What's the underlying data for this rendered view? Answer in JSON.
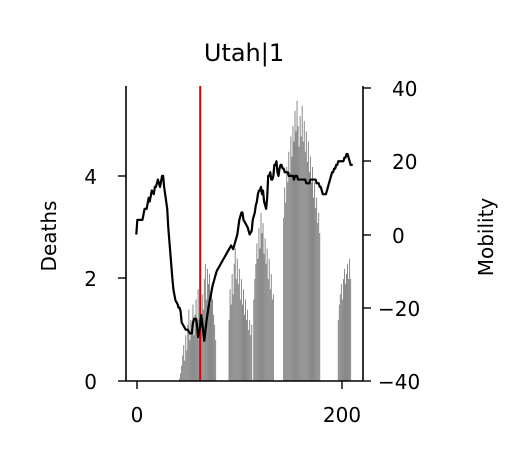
{
  "chart_data": {
    "type": "bar",
    "title": "Utah|1",
    "ylabel": "Deaths",
    "y2label": "Mobility",
    "x_ticks": [
      "0",
      "200"
    ],
    "y_ticks": [
      "0",
      "2",
      "4"
    ],
    "y2_ticks": [
      "40",
      "20",
      "0",
      "−20",
      "−40"
    ],
    "xlim": [
      -10,
      220
    ],
    "ylim": [
      0,
      5.75
    ],
    "y2lim": [
      -40,
      40
    ],
    "colors": {
      "bars": "#808080",
      "line": "#000000",
      "marker": "#dd0000"
    },
    "marker_x": 62,
    "grid": false,
    "bar_segments": [
      {
        "x_start": 42,
        "x_end": 62,
        "values": [
          0.05,
          0.15,
          0.3,
          0.5,
          0.7,
          0.4,
          0.9,
          0.6,
          1.1,
          1.4,
          0.8,
          1.2,
          1.0,
          1.5,
          0.9,
          1.3,
          1.6,
          1.1,
          1.8,
          1.2,
          1.4
        ]
      },
      {
        "x_start": 63,
        "x_end": 77,
        "values": [
          1.2,
          1.7,
          1.4,
          2.0,
          2.3,
          1.6,
          2.2,
          1.9,
          2.1,
          1.5,
          1.8,
          1.6,
          1.3,
          1.1,
          0.8
        ]
      },
      {
        "x_start": 90,
        "x_end": 112,
        "values": [
          1.2,
          1.8,
          1.5,
          2.1,
          1.7,
          2.3,
          2.6,
          2.0,
          2.4,
          1.9,
          2.2,
          1.6,
          2.0,
          1.5,
          1.8,
          1.3,
          1.6,
          1.2,
          1.4,
          1.0,
          1.2,
          0.9,
          1.1
        ]
      },
      {
        "x_start": 114,
        "x_end": 133,
        "values": [
          1.6,
          2.0,
          2.3,
          2.7,
          2.4,
          3.0,
          2.6,
          3.3,
          2.9,
          3.1,
          2.5,
          2.8,
          2.3,
          2.6,
          2.0,
          2.4,
          1.8,
          2.1,
          1.6,
          1.7
        ]
      },
      {
        "x_start": 143,
        "x_end": 178,
        "values": [
          3.2,
          3.8,
          3.5,
          4.2,
          3.9,
          4.5,
          4.1,
          4.8,
          4.4,
          5.0,
          4.7,
          5.3,
          4.9,
          5.5,
          5.0,
          4.6,
          5.2,
          4.8,
          5.4,
          4.7,
          5.1,
          4.5,
          4.9,
          4.3,
          4.7,
          4.1,
          4.4,
          3.9,
          4.2,
          3.6,
          3.9,
          3.4,
          3.6,
          3.1,
          3.3,
          2.9
        ]
      },
      {
        "x_start": 196,
        "x_end": 208,
        "values": [
          1.2,
          1.5,
          1.7,
          1.9,
          1.6,
          2.0,
          2.2,
          1.9,
          2.1,
          2.3,
          2.0,
          2.4,
          2.0
        ]
      }
    ],
    "mobility_series": {
      "x": [
        0,
        1,
        3,
        6,
        8,
        10,
        12,
        13,
        15,
        17,
        18,
        19,
        21,
        23,
        25,
        26,
        27,
        28,
        30,
        31,
        33,
        35,
        36,
        38,
        40,
        41,
        42,
        43,
        44,
        46,
        48,
        50,
        52,
        54,
        55,
        56,
        58,
        59,
        60,
        62,
        63,
        64,
        66,
        68,
        70,
        72,
        74,
        76,
        78,
        80,
        82,
        84,
        86,
        88,
        90,
        92,
        94,
        95,
        96,
        97,
        98,
        99,
        100,
        101,
        102,
        103,
        104,
        106,
        108,
        110,
        112,
        113,
        114,
        115,
        116,
        117,
        118,
        119,
        120,
        121,
        122,
        123,
        124,
        125,
        126,
        127,
        128,
        129,
        130,
        131,
        132,
        133,
        134,
        135,
        136,
        137,
        138,
        139,
        140,
        141,
        142,
        143,
        144,
        145,
        146,
        147,
        148,
        149,
        150,
        151,
        152,
        153,
        154,
        155,
        156,
        157,
        158,
        159,
        160,
        161,
        162,
        163,
        164,
        165,
        166,
        167,
        168,
        169,
        170,
        171,
        172,
        173,
        174,
        175,
        176,
        177,
        178,
        179,
        180,
        181,
        182,
        183,
        184,
        185,
        186,
        187,
        188,
        189,
        190,
        191,
        192,
        193,
        194,
        195,
        196,
        197,
        198,
        199,
        200,
        201,
        202,
        203,
        204,
        205,
        206,
        207,
        208,
        210
      ],
      "y": [
        0,
        4,
        4,
        4,
        7,
        7,
        10,
        9,
        12,
        11,
        13,
        13,
        15,
        13,
        16,
        16,
        13,
        11,
        7,
        2,
        -5,
        -12,
        -15,
        -18,
        -19,
        -20,
        -20,
        -21,
        -24,
        -25,
        -26,
        -26,
        -27,
        -27,
        -24,
        -23,
        -23,
        -25,
        -28,
        -25,
        -22,
        -24,
        -29,
        -24,
        -20,
        -17,
        -14,
        -12,
        -10,
        -9,
        -8,
        -7,
        -6,
        -5,
        -4,
        -3,
        -4,
        -3,
        -2,
        -1,
        0,
        2,
        4,
        5,
        6,
        6,
        4,
        3,
        2,
        0,
        1,
        4,
        5,
        6,
        8,
        9,
        11,
        12,
        12,
        13,
        11,
        12,
        9,
        8,
        7,
        10,
        16,
        16,
        17,
        15,
        15,
        16,
        19,
        19,
        20,
        17,
        16,
        18,
        19,
        19,
        18,
        18,
        17,
        17,
        17,
        17,
        16,
        16,
        16,
        16,
        16,
        15,
        16,
        16,
        16,
        15,
        15,
        15,
        15,
        15,
        15,
        15,
        15,
        14,
        14,
        14,
        14,
        15,
        15,
        15,
        15,
        15,
        15,
        14,
        14,
        14,
        13,
        13,
        12,
        11,
        11,
        11,
        11,
        12,
        13,
        14,
        15,
        16,
        17,
        17,
        18,
        18,
        19,
        19,
        20,
        20,
        20,
        20,
        20,
        20,
        21,
        21,
        22,
        22,
        21,
        20,
        19,
        19
      ]
    }
  }
}
